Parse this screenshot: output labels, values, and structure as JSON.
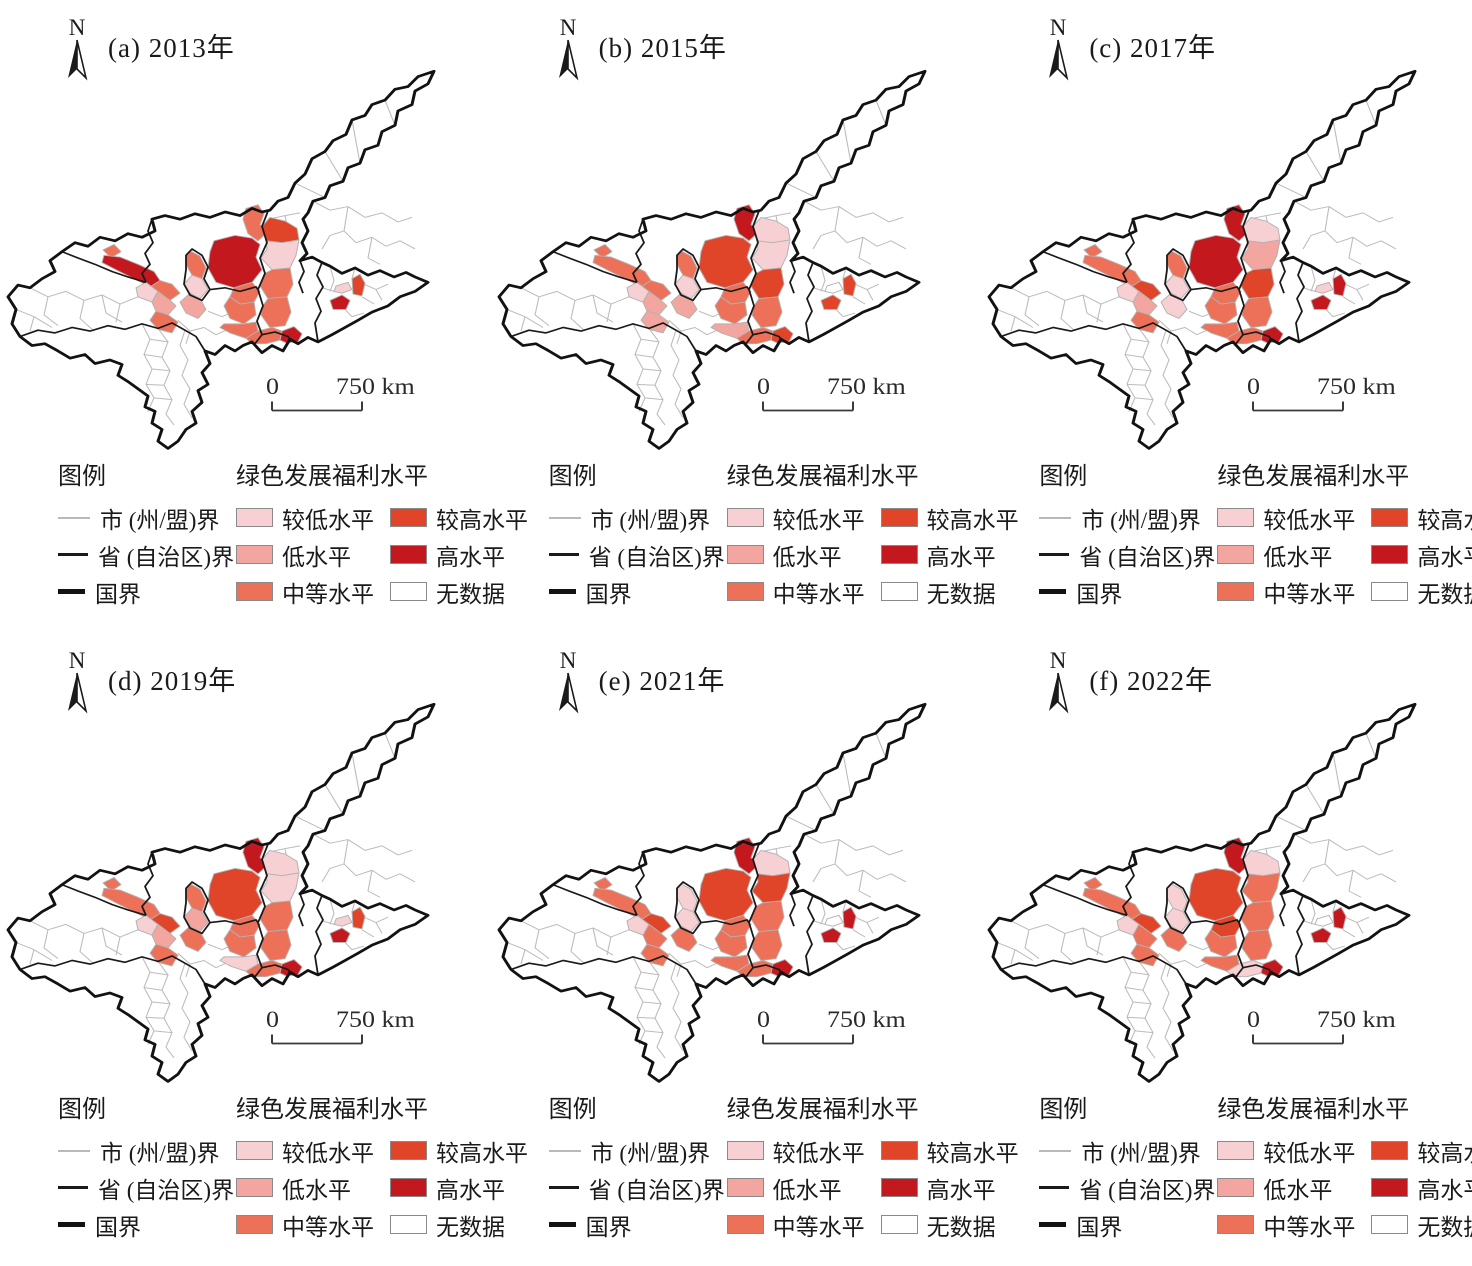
{
  "figure": {
    "panels": [
      {
        "id": "a",
        "title": "(a) 2013年",
        "north_label": "N",
        "scalebar": {
          "zero": "0",
          "max": "750 km"
        },
        "regions": {
          "r1": "M",
          "r2": "H",
          "r3": "M",
          "r4": "H",
          "r5": "M",
          "r6": "L2",
          "r7": "L",
          "r8": "M",
          "r9": "M",
          "r10": "L2",
          "r11": "L",
          "r12": "M",
          "r13": "M",
          "r14": "M",
          "s1": "H2",
          "s2": "L2",
          "s3": "M",
          "s4": "M",
          "h1": "M",
          "h2": "H",
          "d1": "H",
          "d2": "H2",
          "d3": "L2"
        }
      },
      {
        "id": "b",
        "title": "(b) 2015年",
        "north_label": "N",
        "scalebar": {
          "zero": "0",
          "max": "750 km"
        },
        "regions": {
          "r1": "H",
          "r2": "H2",
          "r3": "M",
          "r4": "M",
          "r5": "M",
          "r6": "L2",
          "r7": "L",
          "r8": "L",
          "r9": "M",
          "r10": "L2",
          "r11": "L",
          "r12": "M",
          "r13": "M",
          "r14": "L",
          "s1": "L2",
          "s2": "L2",
          "s3": "H2",
          "s4": "M",
          "h1": "M",
          "h2": "H2",
          "d1": "H2",
          "d2": "H2",
          "d3": "N"
        }
      },
      {
        "id": "c",
        "title": "(c) 2017年",
        "north_label": "N",
        "scalebar": {
          "zero": "0",
          "max": "750 km"
        },
        "regions": {
          "r1": "H",
          "r2": "H",
          "r3": "M",
          "r4": "M",
          "r5": "H2",
          "r6": "L2",
          "r7": "L",
          "r8": "M",
          "r9": "M",
          "r10": "L2",
          "r11": "L2",
          "r12": "M",
          "r13": "M",
          "r14": "M",
          "s1": "L2",
          "s2": "L",
          "s3": "H2",
          "s4": "M",
          "h1": "M",
          "h2": "H",
          "d1": "H",
          "d2": "H",
          "d3": "L2"
        }
      },
      {
        "id": "d",
        "title": "(d) 2019年",
        "north_label": "N",
        "scalebar": {
          "zero": "0",
          "max": "750 km"
        },
        "regions": {
          "r1": "H",
          "r2": "H2",
          "r3": "M",
          "r4": "M",
          "r5": "H2",
          "r6": "L2",
          "r7": "L",
          "r8": "M",
          "r9": "M",
          "r10": "L",
          "r11": "M",
          "r12": "M",
          "r13": "M",
          "r14": "L2",
          "s1": "L2",
          "s2": "L2",
          "s3": "M",
          "s4": "M",
          "h1": "M",
          "h2": "H",
          "d1": "H",
          "d2": "H2",
          "d3": "L2"
        }
      },
      {
        "id": "e",
        "title": "(e) 2021年",
        "north_label": "N",
        "scalebar": {
          "zero": "0",
          "max": "750 km"
        },
        "regions": {
          "r1": "H",
          "r2": "H2",
          "r3": "M",
          "r4": "M",
          "r5": "H2",
          "r6": "L2",
          "r7": "M",
          "r8": "M",
          "r9": "L2",
          "r10": "L2",
          "r11": "M",
          "r12": "M",
          "r13": "M",
          "r14": "M",
          "s1": "L2",
          "s2": "H2",
          "s3": "M",
          "s4": "M",
          "h1": "M",
          "h2": "H",
          "d1": "H",
          "d2": "H",
          "d3": "N"
        }
      },
      {
        "id": "f",
        "title": "(f) 2022年",
        "north_label": "N",
        "scalebar": {
          "zero": "0",
          "max": "750 km"
        },
        "regions": {
          "r1": "H",
          "r2": "H2",
          "r3": "M",
          "r4": "M",
          "r5": "H2",
          "r6": "L2",
          "r7": "M",
          "r8": "M",
          "r9": "L2",
          "r10": "L2",
          "r11": "M",
          "r12": "H2",
          "r13": "M",
          "r14": "M",
          "s1": "L2",
          "s2": "M",
          "s3": "M",
          "s4": "M",
          "h1": "L2",
          "h2": "H",
          "d1": "H",
          "d2": "H",
          "d3": "N"
        }
      }
    ],
    "legend": {
      "title": "图例",
      "lines": [
        {
          "label": "市 (州/盟)界",
          "color": "#b9b9b9",
          "weight": 2,
          "length": 32
        },
        {
          "label": "省 (自治区)界",
          "color": "#1a1a1a",
          "weight": 3.5,
          "length": 30
        },
        {
          "label": "国界",
          "color": "#121212",
          "weight": 5,
          "length": 27
        }
      ],
      "choropleth_title": "绿色发展福利水平",
      "classes": [
        {
          "key": "L2",
          "label": "较低水平",
          "color": "#f6d0d3"
        },
        {
          "key": "L",
          "label": "低水平",
          "color": "#f2a69f"
        },
        {
          "key": "M",
          "label": "中等水平",
          "color": "#ed7058"
        },
        {
          "key": "H2",
          "label": "较高水平",
          "color": "#e0452a"
        },
        {
          "key": "H",
          "label": "高水平",
          "color": "#c2181e"
        },
        {
          "key": "N",
          "label": "无数据",
          "color": "#ffffff"
        }
      ],
      "boundary_colors": {
        "city": "#bcbcbc",
        "province": "#1a1a1a",
        "nation": "#121212"
      }
    }
  }
}
